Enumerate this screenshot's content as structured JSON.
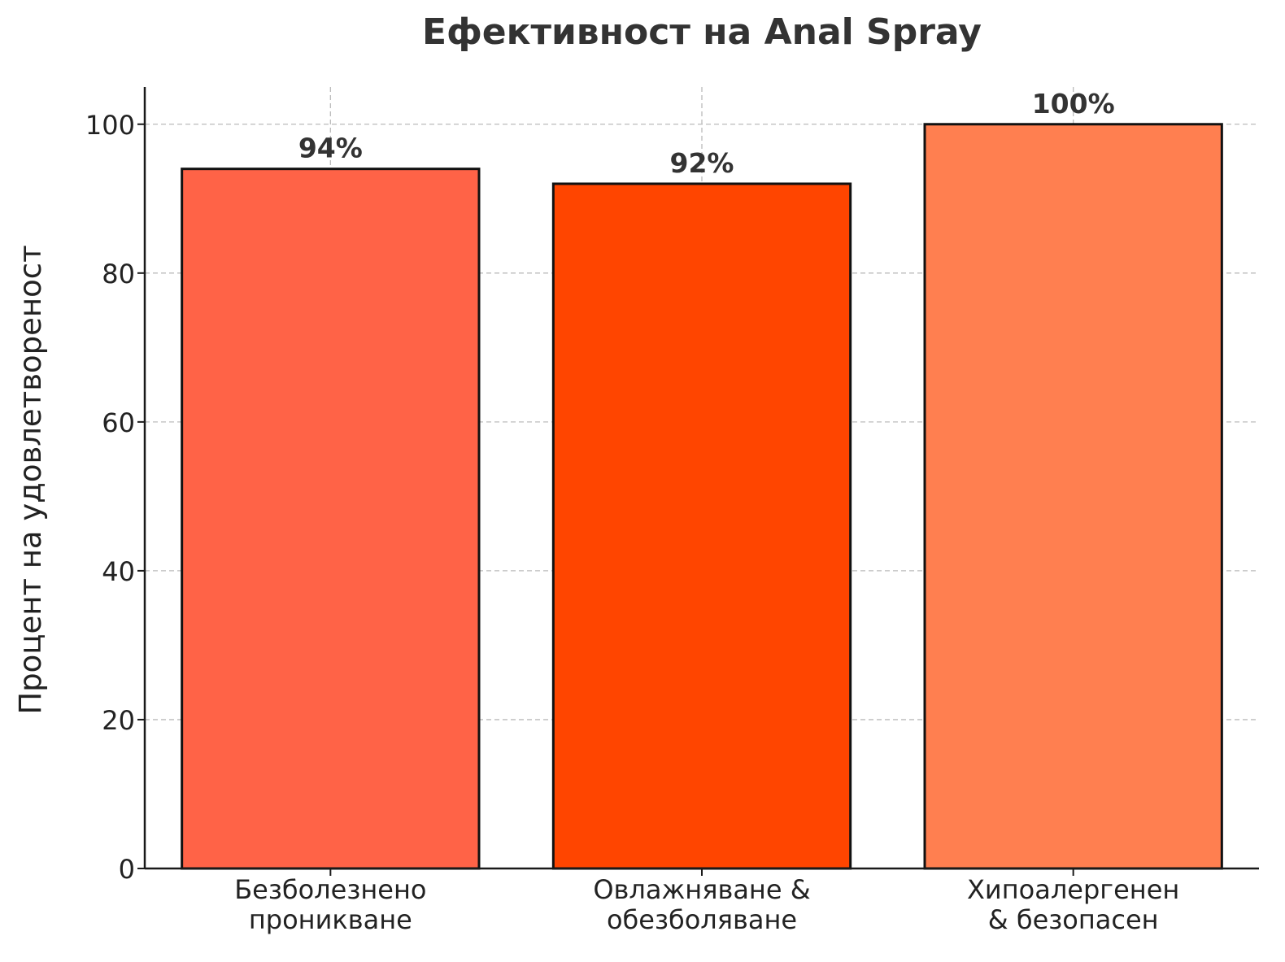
{
  "chart_data": {
    "type": "bar",
    "title": "Ефективност на Anal Spray",
    "xlabel": "",
    "ylabel": "Процент на удовлетвореност",
    "categories": [
      [
        "Безболезнено",
        "проникване"
      ],
      [
        "Овлажняване &",
        "обезболяване"
      ],
      [
        "Хипоалергенен",
        "& безопасен"
      ]
    ],
    "values": [
      94,
      92,
      100
    ],
    "value_labels": [
      "94%",
      "92%",
      "100%"
    ],
    "colors": [
      "#FF6347",
      "#FF4500",
      "#FF7F50"
    ],
    "ylim": [
      0,
      105
    ],
    "yticks": [
      0,
      20,
      40,
      60,
      80,
      100
    ],
    "grid": true,
    "legend": "none"
  }
}
